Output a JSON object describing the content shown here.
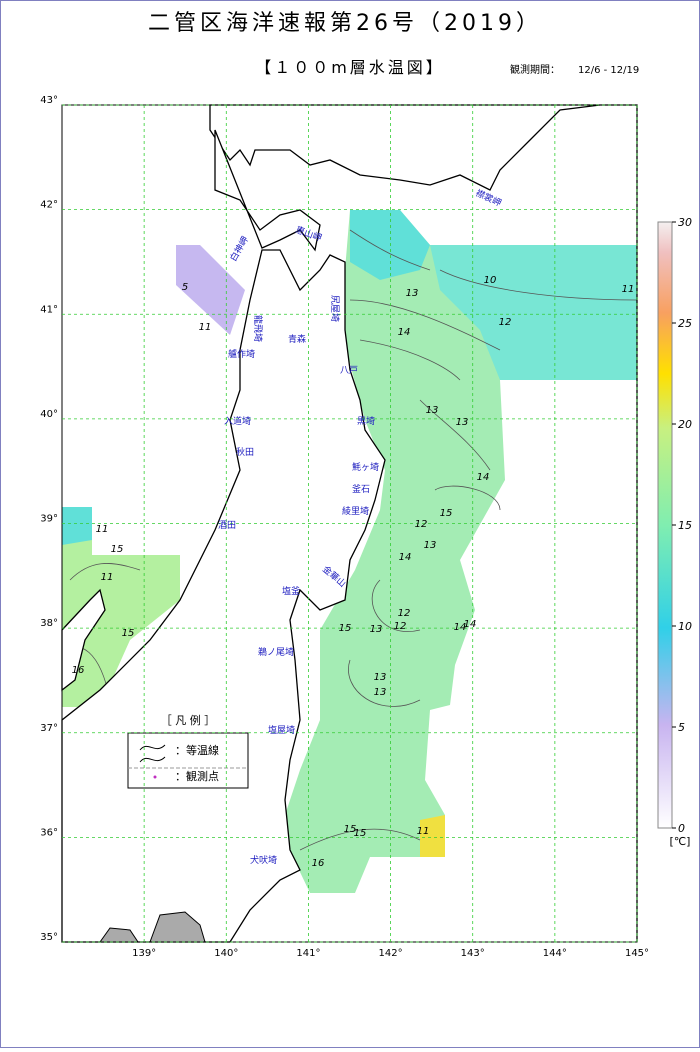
{
  "header": {
    "title": "二管区海洋速報第26号（2019）",
    "subtitle": "【１００m層水温図】",
    "period_label": "観測期間：",
    "period": "12/6 - 12/19"
  },
  "map": {
    "lonlim": [
      138,
      145
    ],
    "latlim": [
      35,
      43
    ],
    "lat_ticks": [
      {
        "value": 35,
        "label": "35°"
      },
      {
        "value": 36,
        "label": "36°"
      },
      {
        "value": 37,
        "label": "37°"
      },
      {
        "value": 38,
        "label": "38°"
      },
      {
        "value": 39,
        "label": "39°"
      },
      {
        "value": 40,
        "label": "40°"
      },
      {
        "value": 41,
        "label": "41°"
      },
      {
        "value": 42,
        "label": "42°"
      },
      {
        "value": 43,
        "label": "43°"
      }
    ],
    "lon_ticks": [
      {
        "value": 139,
        "label": "139°"
      },
      {
        "value": 140,
        "label": "140°"
      },
      {
        "value": 141,
        "label": "141°"
      },
      {
        "value": 142,
        "label": "142°"
      },
      {
        "value": 143,
        "label": "143°"
      },
      {
        "value": 144,
        "label": "144°"
      },
      {
        "value": 145,
        "label": "145°"
      }
    ],
    "places": [
      "白神岬",
      "恵山岬",
      "襟裳岬",
      "龍飛埼",
      "尻屋埼",
      "青森",
      "艫作埼",
      "八戸",
      "入道埼",
      "黒埼",
      "秋田",
      "魹ヶ埼",
      "釜石",
      "綾里埼",
      "酒田",
      "金華山",
      "塩釜",
      "鵜ノ尾埼",
      "塩屋埼",
      "犬吠埼"
    ],
    "contour_labels": [
      5,
      11,
      11,
      10,
      11,
      13,
      12,
      14,
      13,
      13,
      14,
      15,
      12,
      13,
      14,
      11,
      15,
      15,
      14,
      12,
      13,
      12,
      14,
      11,
      15,
      15,
      16,
      13,
      15,
      16,
      13
    ]
  },
  "colorbar": {
    "ylim": [
      0,
      30
    ],
    "ticks": [
      0,
      5,
      10,
      15,
      20,
      25,
      30
    ],
    "unit": "[℃]"
  },
  "legend": {
    "title": "［ 凡 例 ］",
    "isotherm": "：等温線",
    "station": "：観測点"
  }
}
